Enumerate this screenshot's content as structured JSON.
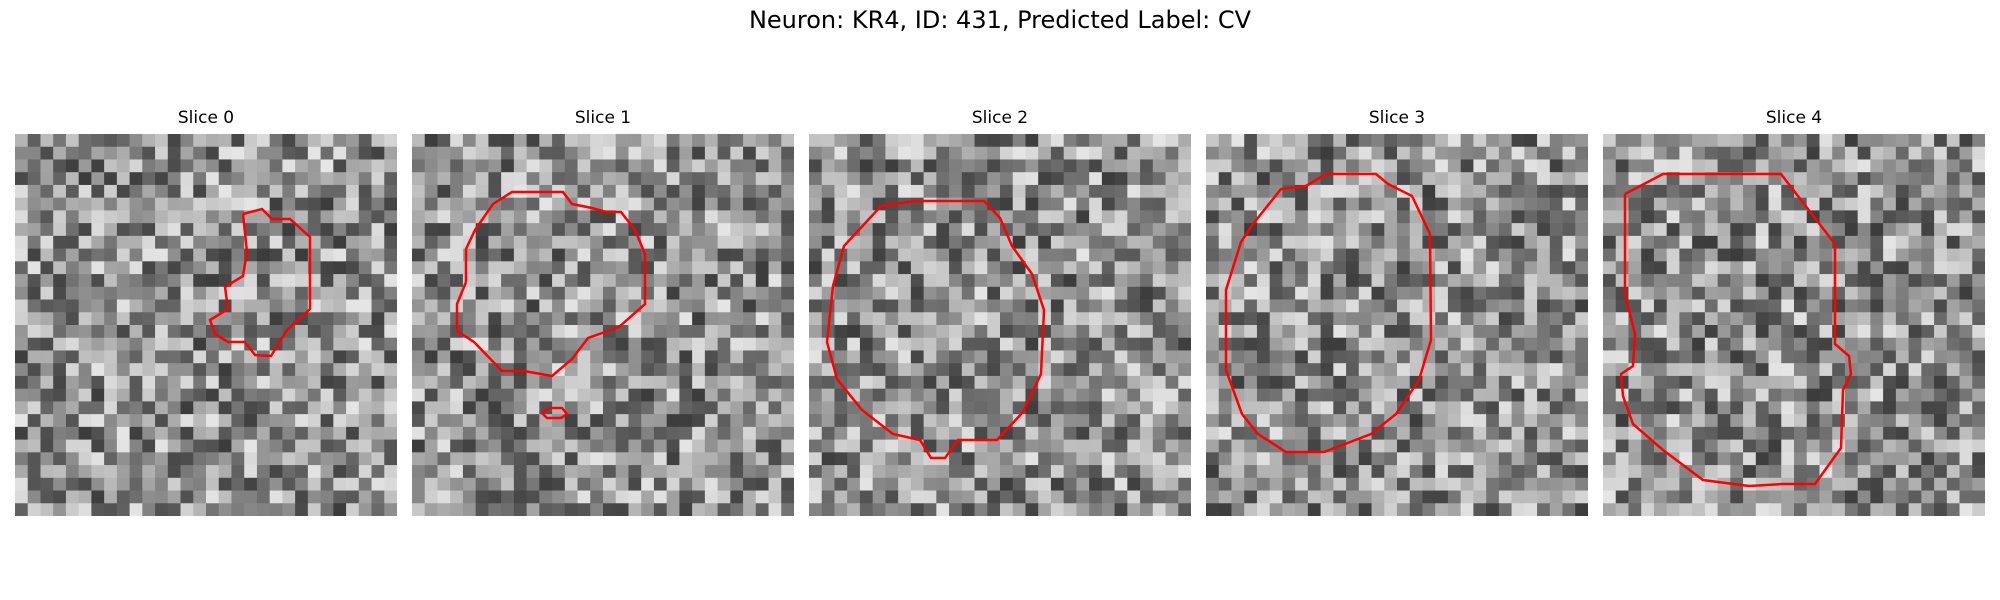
{
  "figure": {
    "title": "Neuron: KR4, ID: 431, Predicted Label: CV"
  },
  "colors": {
    "contour": "#ff0000",
    "background": "#ffffff"
  },
  "slices": [
    {
      "title": "Slice 0"
    },
    {
      "title": "Slice 1"
    },
    {
      "title": "Slice 2"
    },
    {
      "title": "Slice 3"
    },
    {
      "title": "Slice 4"
    }
  ]
}
